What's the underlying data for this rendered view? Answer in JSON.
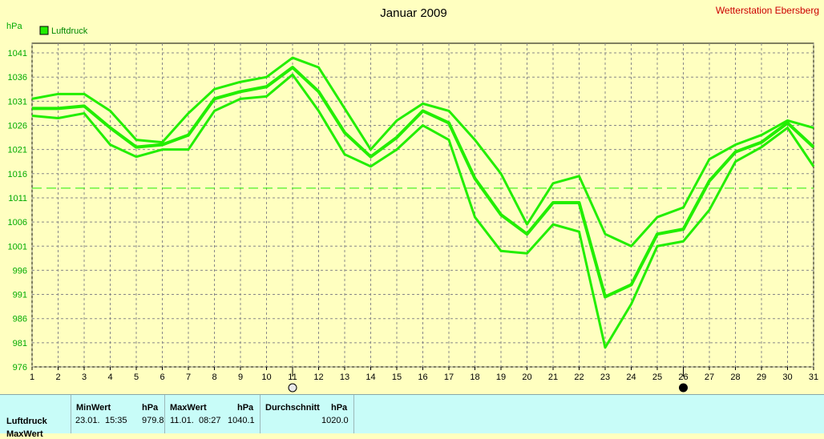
{
  "header": {
    "station": "Wetterstation Ebersberg"
  },
  "chart_data": {
    "type": "line",
    "title": "Januar 2009",
    "ylabel": "hPa",
    "legend": "Luftdruck",
    "legend_position": "top-left",
    "ylim": [
      976,
      1043
    ],
    "yticks": [
      976,
      981,
      986,
      991,
      996,
      1001,
      1006,
      1011,
      1016,
      1021,
      1026,
      1031,
      1036,
      1041
    ],
    "x": [
      1,
      2,
      3,
      4,
      5,
      6,
      7,
      8,
      9,
      10,
      11,
      12,
      13,
      14,
      15,
      16,
      17,
      18,
      19,
      20,
      21,
      22,
      23,
      24,
      25,
      26,
      27,
      28,
      29,
      30,
      31
    ],
    "series": [
      {
        "role": "max",
        "values": [
          1031.5,
          1032.5,
          1032.5,
          1029,
          1023,
          1022.5,
          1028.5,
          1033.5,
          1035,
          1036,
          1040,
          1038,
          1029.5,
          1021,
          1027,
          1030.5,
          1029,
          1023,
          1016,
          1005.5,
          1014,
          1015.5,
          1003.5,
          1001,
          1007,
          1009,
          1019,
          1022,
          1024,
          1027,
          1025.5
        ]
      },
      {
        "role": "mean",
        "values": [
          1029.5,
          1029.5,
          1030,
          1025.5,
          1021.5,
          1022,
          1024,
          1031.5,
          1033,
          1034,
          1038,
          1033,
          1024.5,
          1019.5,
          1023.5,
          1029,
          1026.5,
          1015,
          1007.5,
          1003.5,
          1010,
          1010,
          990.5,
          993,
          1003.5,
          1004.5,
          1014.5,
          1020.5,
          1022.5,
          1026.5,
          1021.5
        ]
      },
      {
        "role": "min",
        "values": [
          1028,
          1027.5,
          1028.5,
          1022,
          1019.5,
          1021,
          1021,
          1029,
          1031.5,
          1032,
          1036.5,
          1029,
          1020,
          1017.5,
          1021,
          1026,
          1023,
          1007,
          1000,
          999.5,
          1005.5,
          1004,
          980,
          989,
          1001,
          1002,
          1008.5,
          1018.5,
          1021.5,
          1025.5,
          1017.5
        ]
      }
    ],
    "average_line": 1013,
    "grid": true,
    "markers": [
      {
        "x": 11,
        "symbol": "full-moon-icon"
      },
      {
        "x": 26,
        "symbol": "new-moon-icon"
      }
    ],
    "line_color": "#22ee00",
    "axis_text_color": "#00aa00"
  },
  "stats": {
    "row_label": "Luftdruck",
    "row_label_2": "MaxWert",
    "min": {
      "label": "MinWert",
      "unit": "hPa",
      "date": "23.01.",
      "time": "15:35",
      "value": "979.8"
    },
    "max": {
      "label": "MaxWert",
      "unit": "hPa",
      "date": "11.01.",
      "time": "08:27",
      "value": "1040.1"
    },
    "avg": {
      "label": "Durchschnitt",
      "unit": "hPa",
      "value": "1020.0"
    }
  }
}
